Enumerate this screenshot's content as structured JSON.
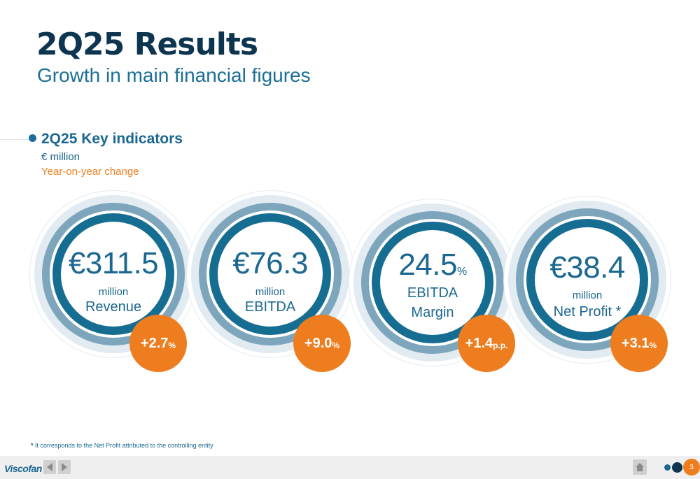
{
  "header": {
    "title": "2Q25 Results",
    "subtitle": "Growth in main financial figures"
  },
  "section": {
    "title": "2Q25 Key indicators",
    "unit": "€ million",
    "change_label": "Year-on-year change"
  },
  "indicators": [
    {
      "value": "€311.5",
      "line1": "million",
      "line2": "Revenue",
      "change": "+2.7",
      "change_suffix": "%"
    },
    {
      "value": "€76.3",
      "line1": "million",
      "line2": "EBITDA",
      "change": "+9.0",
      "change_suffix": "%"
    },
    {
      "value": "24.5",
      "value_suffix": "%",
      "line1": "EBITDA",
      "line2": "Margin",
      "change": "+1.4",
      "change_suffix": "p.p."
    },
    {
      "value": "€38.4",
      "line1": "million",
      "line2": "Net Profit *",
      "change": "+3.1",
      "change_suffix": "%"
    }
  ],
  "footnote": {
    "marker": "*",
    "text": "It corresponds to the Net Profit attributed to the controlling entity"
  },
  "footer": {
    "logo": "Viscofan",
    "page_number": "3",
    "icons": [
      "arrow-left-icon",
      "arrow-right-icon",
      "home-icon"
    ]
  },
  "colors": {
    "dark_blue": "#0d3550",
    "primary_blue": "#1b6790",
    "ring_blue": "#166d92",
    "light_ring": "#7da6bd",
    "orange": "#ee7d1f"
  }
}
